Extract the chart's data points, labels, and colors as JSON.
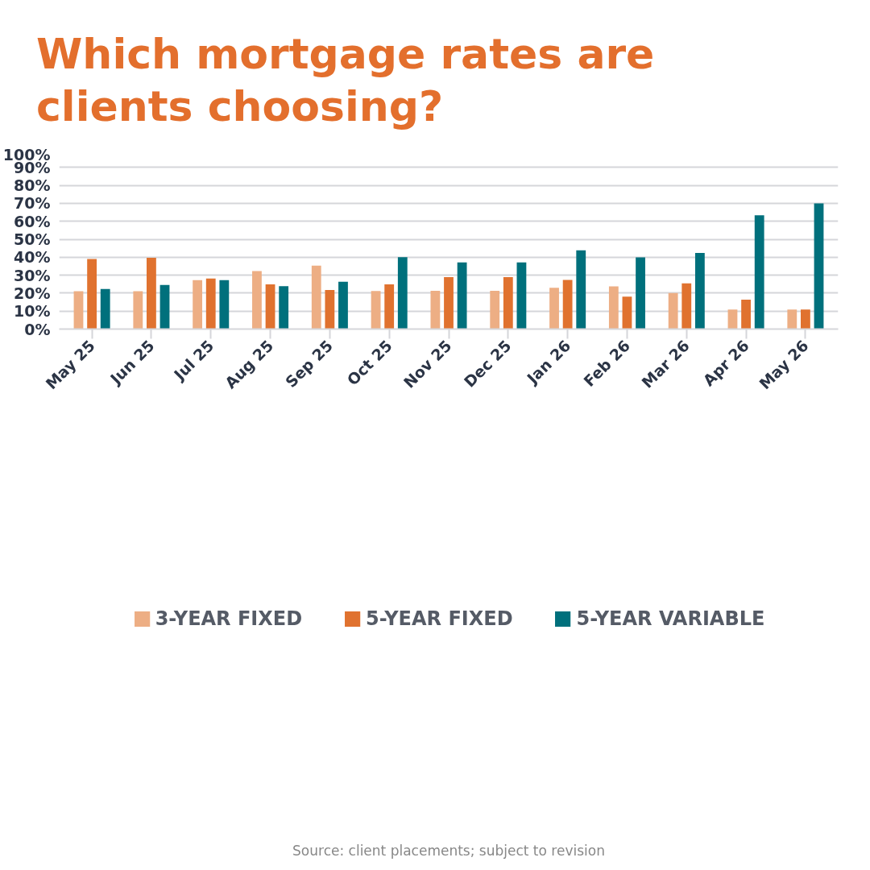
{
  "chart_data": {
    "type": "bar",
    "title": "Which mortgage rates are clients choosing?",
    "categories": [
      "May 25",
      "Jun 25",
      "Jul 25",
      "Aug 25",
      "Sep 25",
      "Oct 25",
      "Nov 25",
      "Dec 25",
      "Jan 26",
      "Feb 26",
      "Mar 26",
      "Apr 26",
      "May 26"
    ],
    "series": [
      {
        "name": "3-YEAR FIXED",
        "color": "#edae84",
        "values": [
          21.1,
          21.1,
          27.2,
          32.3,
          35.3,
          21.2,
          21.3,
          21.3,
          23.0,
          23.8,
          20.1,
          10.9,
          10.9
        ]
      },
      {
        "name": "5-YEAR FIXED",
        "color": "#e0722f",
        "values": [
          39.0,
          39.7,
          28.1,
          24.9,
          21.8,
          24.9,
          28.9,
          28.9,
          27.4,
          18.1,
          25.5,
          16.4,
          10.9
        ]
      },
      {
        "name": "5-YEAR VARIABLE",
        "color": "#00707c",
        "values": [
          22.3,
          24.6,
          27.2,
          23.9,
          26.3,
          40.0,
          37.1,
          37.1,
          43.8,
          39.9,
          42.4,
          63.3,
          70.0
        ]
      }
    ],
    "ylim": [
      0,
      100
    ],
    "yticks": [
      {
        "value": 0,
        "label": "0%"
      },
      {
        "value": 10,
        "label": "10%"
      },
      {
        "value": 20,
        "label": "20%"
      },
      {
        "value": 30,
        "label": "30%"
      },
      {
        "value": 40,
        "label": "40%"
      },
      {
        "value": 50,
        "label": "50%"
      },
      {
        "value": 60,
        "label": "60%"
      },
      {
        "value": 70,
        "label": "70%"
      },
      {
        "value": 80,
        "label": "80%"
      },
      {
        "value": 90,
        "label": "90%"
      },
      {
        "value": 100,
        "label": "100%"
      }
    ],
    "grid": "y",
    "legend": "bottom",
    "annotations": [
      "Source: client placements; subject to revision"
    ]
  }
}
